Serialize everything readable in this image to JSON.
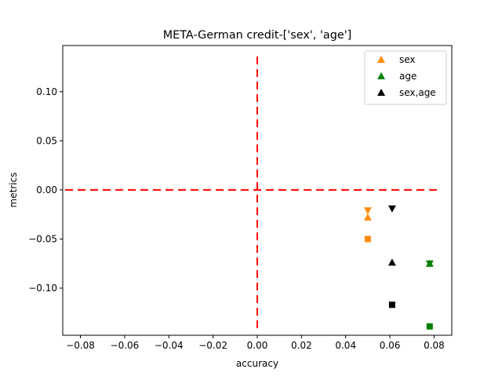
{
  "chart_data": {
    "type": "scatter",
    "title": "META-German credit-['sex', 'age']",
    "xlabel": "accuracy",
    "ylabel": "metrics",
    "xlim": [
      -0.088,
      0.088
    ],
    "ylim": [
      -0.148,
      0.147
    ],
    "xticks": [
      -0.08,
      -0.06,
      -0.04,
      -0.02,
      0.0,
      0.02,
      0.04,
      0.06,
      0.08
    ],
    "xtick_labels": [
      "−0.08",
      "−0.06",
      "−0.04",
      "−0.02",
      "0.00",
      "0.02",
      "0.04",
      "0.06",
      "0.08"
    ],
    "yticks": [
      0.1,
      0.05,
      0.0,
      -0.05,
      -0.1
    ],
    "ytick_labels": [
      "0.10",
      "0.05",
      "0.00",
      "−0.05",
      "−0.10"
    ],
    "grid": false,
    "legend_position": "top-right",
    "reference_lines": [
      {
        "orientation": "horizontal",
        "value": 0.0,
        "style": "dashed",
        "color": "#ff0000"
      },
      {
        "orientation": "vertical",
        "value": 0.0,
        "style": "dashed",
        "color": "#ff0000"
      }
    ],
    "series": [
      {
        "name": "sex",
        "color": "#ff8c00",
        "points": [
          {
            "x": 0.05,
            "y": -0.021,
            "marker": "triangle-down"
          },
          {
            "x": 0.05,
            "y": -0.028,
            "marker": "triangle-up"
          },
          {
            "x": 0.05,
            "y": -0.05,
            "marker": "square"
          }
        ]
      },
      {
        "name": "age",
        "color": "#008000",
        "points": [
          {
            "x": 0.078,
            "y": -0.075,
            "marker": "triangle-down"
          },
          {
            "x": 0.078,
            "y": -0.075,
            "marker": "triangle-up"
          },
          {
            "x": 0.078,
            "y": -0.139,
            "marker": "square"
          }
        ]
      },
      {
        "name": "sex,age",
        "color": "#000000",
        "points": [
          {
            "x": 0.061,
            "y": -0.019,
            "marker": "triangle-down"
          },
          {
            "x": 0.061,
            "y": -0.074,
            "marker": "triangle-up"
          },
          {
            "x": 0.061,
            "y": -0.117,
            "marker": "square"
          }
        ]
      }
    ]
  }
}
